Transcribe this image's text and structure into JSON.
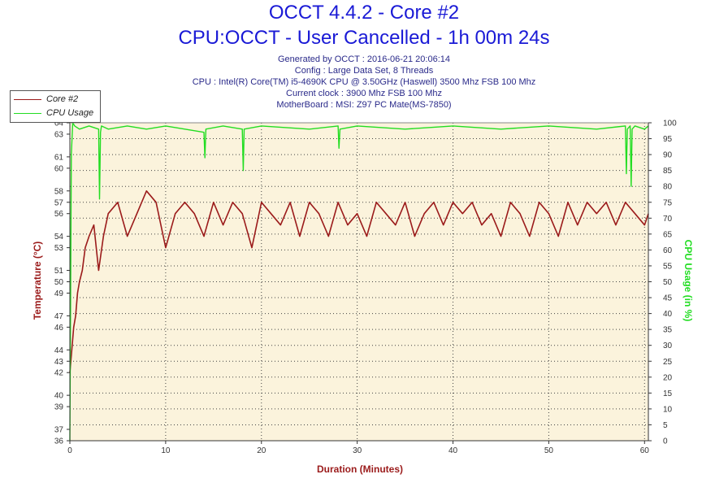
{
  "header": {
    "title": "OCCT 4.4.2 - Core #2",
    "subtitle": "CPU:OCCT - User Cancelled - 1h 00m 24s",
    "info": [
      "Generated by OCCT : 2016-06-21 20:06:14",
      "Config : Large Data Set, 8 Threads",
      "CPU : Intel(R) Core(TM) i5-4690K CPU @ 3.50GHz (Haswell) 3500 Mhz FSB 100 Mhz",
      "Current clock : 3900 Mhz FSB 100 Mhz",
      "MotherBoard : MSI: Z97 PC Mate(MS-7850)"
    ]
  },
  "legend": {
    "core": "Core #2",
    "cpu": "CPU Usage"
  },
  "colors": {
    "temperature": "#9b1b1b",
    "cpu": "#22dd22",
    "title": "#1a1ad6",
    "plot_bg": "#fbf3dc"
  },
  "chart_data": {
    "type": "line",
    "xlabel": "Duration (Minutes)",
    "ylabel_left": "Temperature (°C)",
    "ylabel_right": "CPU Usage (in %)",
    "xlim": [
      0,
      60.4
    ],
    "ylim_left": [
      36,
      64
    ],
    "ylim_right": [
      0,
      100
    ],
    "x_ticks": [
      0,
      10,
      20,
      30,
      40,
      50,
      60
    ],
    "y_ticks_left": [
      36,
      37,
      39,
      40,
      42,
      43,
      44,
      46,
      47,
      49,
      50,
      51,
      53,
      54,
      56,
      57,
      58,
      60,
      61,
      63,
      64
    ],
    "y_ticks_right": [
      0,
      5,
      10,
      15,
      20,
      25,
      30,
      35,
      40,
      45,
      50,
      55,
      60,
      65,
      70,
      75,
      80,
      85,
      90,
      95,
      100
    ],
    "grid": true,
    "legend_position": "top-left",
    "series": [
      {
        "name": "Core #2",
        "axis": "left",
        "x": [
          0,
          0.2,
          0.4,
          0.6,
          0.8,
          1.0,
          1.3,
          1.6,
          2.0,
          2.5,
          3.0,
          3.5,
          4.0,
          5.0,
          6.0,
          7.0,
          8.0,
          9.0,
          10.0,
          11.0,
          12.0,
          13.0,
          14.0,
          15.0,
          16.0,
          17.0,
          18.0,
          19.0,
          20.0,
          21.0,
          22.0,
          23.0,
          24.0,
          25.0,
          26.0,
          27.0,
          28.0,
          29.0,
          30.0,
          31.0,
          32.0,
          33.0,
          34.0,
          35.0,
          36.0,
          37.0,
          38.0,
          39.0,
          40.0,
          41.0,
          42.0,
          43.0,
          44.0,
          45.0,
          46.0,
          47.0,
          48.0,
          49.0,
          50.0,
          51.0,
          52.0,
          53.0,
          54.0,
          55.0,
          56.0,
          57.0,
          58.0,
          59.0,
          60.0,
          60.4
        ],
        "y": [
          42,
          44,
          46,
          47,
          49,
          50,
          51,
          53,
          54,
          55,
          51,
          54,
          56,
          57,
          54,
          56,
          58,
          57,
          53,
          56,
          57,
          56,
          54,
          57,
          55,
          57,
          56,
          53,
          57,
          56,
          55,
          57,
          54,
          57,
          56,
          54,
          57,
          55,
          56,
          54,
          57,
          56,
          55,
          57,
          54,
          56,
          57,
          55,
          57,
          56,
          57,
          55,
          56,
          54,
          57,
          56,
          54,
          57,
          56,
          54,
          57,
          55,
          57,
          56,
          57,
          55,
          57,
          56,
          55,
          56
        ]
      },
      {
        "name": "CPU Usage",
        "axis": "right",
        "x": [
          0,
          0.15,
          0.3,
          0.5,
          1.0,
          2.0,
          3.0,
          3.1,
          3.2,
          3.3,
          4.0,
          6.0,
          8.0,
          10.0,
          12.0,
          14.0,
          14.1,
          14.2,
          16.0,
          18.0,
          18.1,
          18.2,
          20.0,
          25.0,
          28.0,
          28.1,
          28.2,
          30.0,
          35.0,
          40.0,
          45.0,
          50.0,
          55.0,
          58.0,
          58.1,
          58.2,
          58.5,
          58.6,
          58.7,
          59.0,
          60.0,
          60.4
        ],
        "y": [
          0,
          90,
          100,
          99,
          98,
          99,
          98,
          76,
          97,
          99,
          98,
          99,
          98,
          99,
          98,
          97,
          89,
          98,
          99,
          98,
          85,
          98,
          99,
          98,
          99,
          92,
          98,
          99,
          98,
          99,
          98,
          99,
          98,
          99,
          84,
          98,
          99,
          80,
          98,
          99,
          98,
          99
        ]
      }
    ]
  }
}
